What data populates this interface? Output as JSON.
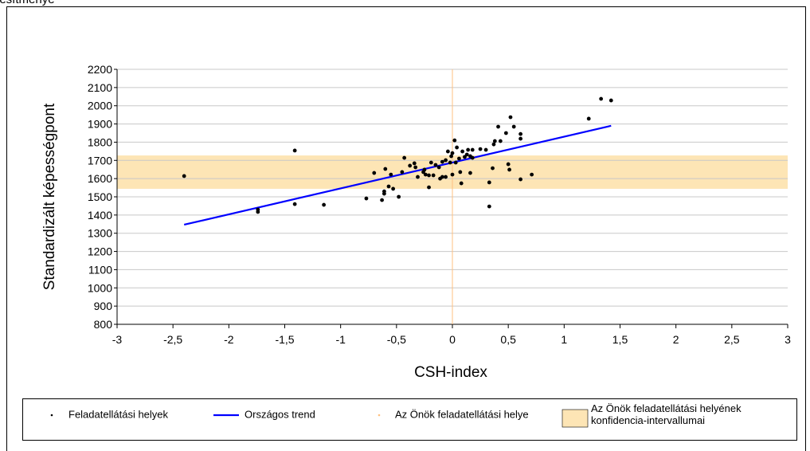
{
  "chart_data": {
    "type": "scatter",
    "header": "jesítménye",
    "x_label": "CSH-index",
    "y_label": "Standardizált képességpont",
    "xlim": [
      -3,
      3
    ],
    "ylim": [
      800,
      2200
    ],
    "xticks": [
      -3,
      {
        "value": -2.5,
        "label": "-2,5"
      },
      -2,
      {
        "value": -1.5,
        "label": "-1,5"
      },
      -1,
      {
        "value": -0.5,
        "label": "-0,5"
      },
      0,
      {
        "value": 0.5,
        "label": "0,5"
      },
      1,
      {
        "value": 1.5,
        "label": "1,5"
      },
      2,
      {
        "value": 2.5,
        "label": "2,5"
      },
      3
    ],
    "yticks": [
      800,
      900,
      1000,
      1100,
      1200,
      1300,
      1400,
      1500,
      1600,
      1700,
      1800,
      1900,
      2000,
      2100,
      2200
    ],
    "grid": true,
    "series": [
      {
        "name": "Feladatellátási helyek",
        "type": "scatter",
        "color": "#000000",
        "x": [
          -2.4,
          -1.74,
          -1.74,
          -1.41,
          -1.41,
          -1.15,
          -0.77,
          -0.7,
          -0.63,
          -0.61,
          -0.61,
          -0.6,
          -0.57,
          -0.55,
          -0.53,
          -0.48,
          -0.45,
          -0.43,
          -0.38,
          -0.34,
          -0.33,
          -0.31,
          -0.26,
          -0.25,
          -0.24,
          -0.21,
          -0.21,
          -0.19,
          -0.17,
          -0.15,
          -0.12,
          -0.11,
          -0.09,
          -0.09,
          -0.06,
          -0.06,
          -0.04,
          -0.02,
          -0.01,
          0.0,
          0.0,
          0.02,
          0.03,
          0.04,
          0.06,
          0.07,
          0.08,
          0.09,
          0.11,
          0.13,
          0.14,
          0.16,
          0.16,
          0.18,
          0.18,
          0.25,
          0.3,
          0.33,
          0.33,
          0.36,
          0.37,
          0.38,
          0.41,
          0.43,
          0.48,
          0.5,
          0.51,
          0.52,
          0.55,
          0.61,
          0.61,
          0.61,
          0.71,
          1.22,
          1.33,
          1.42
        ],
        "values": [
          1614,
          1430,
          1417,
          1754,
          1460,
          1456,
          1491,
          1631,
          1482,
          1530,
          1517,
          1653,
          1557,
          1622,
          1544,
          1500,
          1636,
          1714,
          1671,
          1684,
          1662,
          1609,
          1636,
          1649,
          1622,
          1618,
          1552,
          1688,
          1618,
          1675,
          1662,
          1600,
          1609,
          1692,
          1609,
          1701,
          1749,
          1688,
          1723,
          1622,
          1740,
          1810,
          1688,
          1771,
          1710,
          1636,
          1574,
          1749,
          1719,
          1732,
          1758,
          1723,
          1631,
          1758,
          1714,
          1762,
          1758,
          1579,
          1447,
          1657,
          1788,
          1806,
          1885,
          1806,
          1850,
          1679,
          1649,
          1937,
          1885,
          1845,
          1819,
          1596,
          1622,
          1929,
          2038,
          2029
        ]
      },
      {
        "name": "Országos trend",
        "type": "line",
        "color": "#0000ff",
        "x": [
          -2.4,
          1.42
        ],
        "values": [
          1347,
          1890
        ]
      },
      {
        "name": "Az Önök feladatellátási helye",
        "type": "vline",
        "color": "#ffc080",
        "x": [
          0
        ]
      },
      {
        "name": "Az Önök feladatellátási helyének konfidencia-intervallumai",
        "type": "band",
        "color": "#fde5b5",
        "values": [
          1544,
          1727
        ]
      }
    ]
  }
}
